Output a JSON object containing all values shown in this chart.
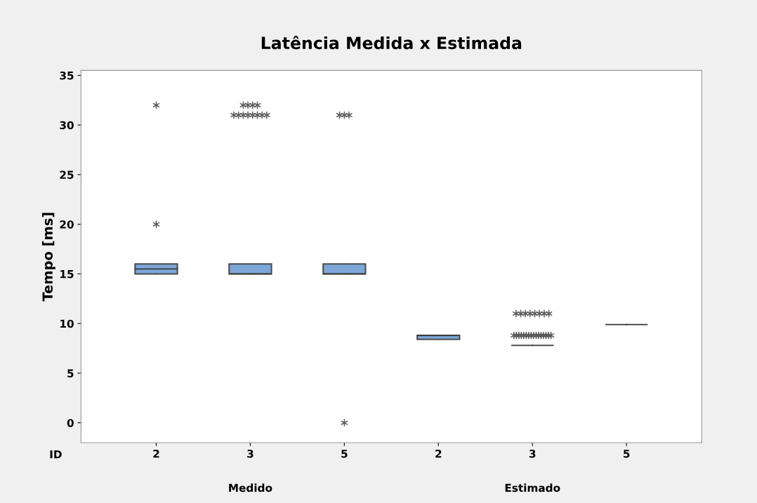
{
  "chart_data": {
    "type": "box",
    "title": "Latência Medida x Estimada",
    "ylabel": "Tempo [ms]",
    "categories": [
      "2",
      "3",
      "5",
      "2",
      "3",
      "5"
    ],
    "annotations": [
      "ID",
      "Medido",
      "Estimado"
    ],
    "boxes": [
      {
        "low": 15,
        "q1": 15,
        "median": 15.5,
        "q3": 16,
        "high": 16,
        "outliers": [
          32,
          20
        ]
      },
      {
        "low": 15,
        "q1": 15,
        "median": 15,
        "q3": 16,
        "high": 16,
        "outliers": [
          31,
          31,
          31,
          31,
          31,
          31,
          31,
          31,
          32,
          32,
          32,
          32
        ]
      },
      {
        "low": 15,
        "q1": 15,
        "median": 15,
        "q3": 16,
        "high": 16,
        "outliers": [
          31,
          31,
          31,
          0
        ]
      },
      {
        "low": 8.4,
        "q1": 8.4,
        "median": 8.8,
        "q3": 8.8,
        "high": 8.8
      },
      {
        "low": 7.8,
        "q1": 7.8,
        "median": 7.8,
        "q3": 7.8,
        "high": 7.8,
        "outliers": [
          8.8,
          8.8,
          8.8,
          8.8,
          8.8,
          8.8,
          8.8,
          8.8,
          8.8,
          8.8,
          8.8,
          8.8,
          8.8,
          8.8,
          8.8,
          8.8,
          11,
          11,
          11,
          11,
          11,
          11,
          11,
          11
        ]
      },
      {
        "low": 9.9,
        "q1": 9.9,
        "median": 9.9,
        "q3": 9.9,
        "high": 9.9
      }
    ],
    "color": "#7da7d9",
    "marker": "star",
    "ylim": [
      -2,
      35.5
    ],
    "yticks": [
      0,
      5,
      10,
      15,
      20,
      25,
      30,
      35
    ],
    "grid": false
  }
}
